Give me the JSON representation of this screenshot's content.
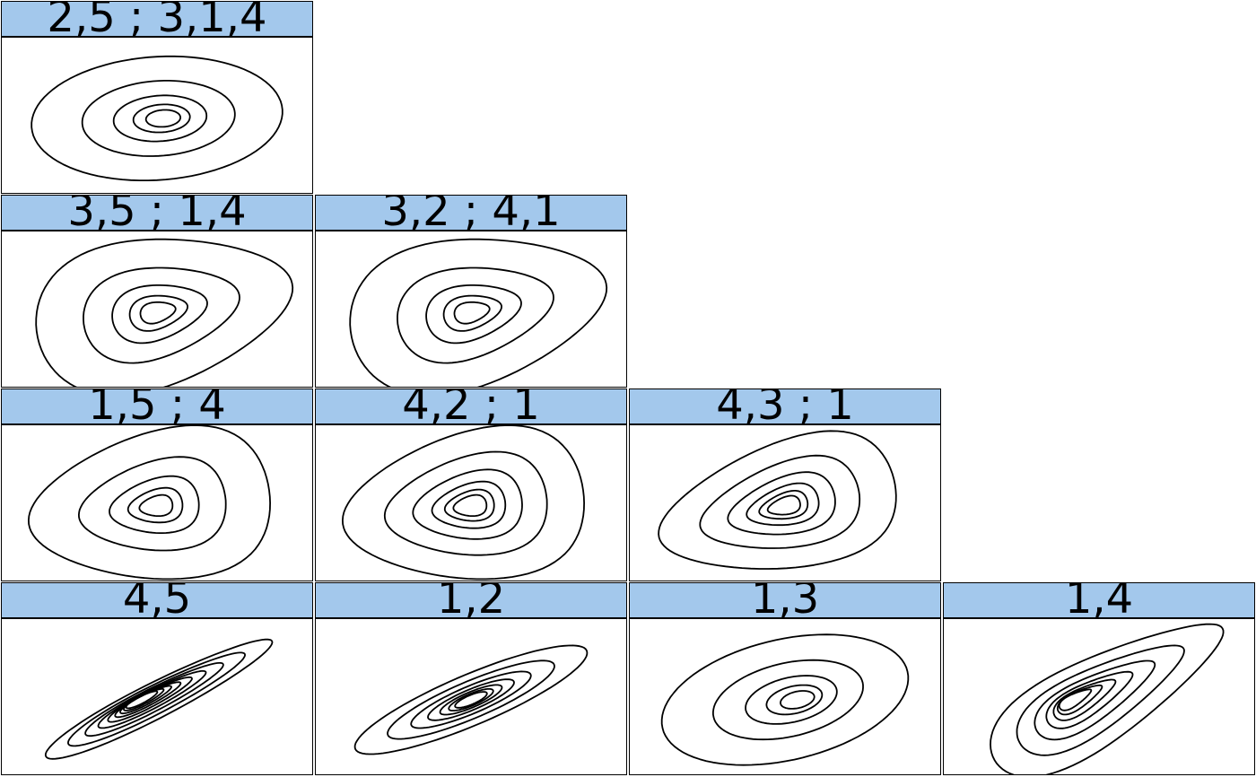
{
  "colors": {
    "strip_background": "#a3c8ec",
    "contour_line": "#000000",
    "border": "#000000"
  },
  "chart_data": {
    "type": "contour",
    "layout": "lower-triangular grid of 2D density contour panels (4 rows)",
    "panels": [
      {
        "label": "2,5 ; 3,1,4",
        "row": 1,
        "col": 1,
        "levels": 5,
        "shape": "ellipse",
        "slant": -4,
        "skew": 0,
        "aspect": 0.49,
        "peak_x": 0.52
      },
      {
        "label": "3,5 ; 1,4",
        "row": 2,
        "col": 1,
        "levels": 5,
        "shape": "skewed",
        "slant": -12,
        "skew": 0.55,
        "aspect": 0.47,
        "peak_x": 0.5
      },
      {
        "label": "3,2 ; 4,1",
        "row": 2,
        "col": 2,
        "levels": 5,
        "shape": "skewed",
        "slant": -12,
        "skew": 0.55,
        "aspect": 0.47,
        "peak_x": 0.5
      },
      {
        "label": "1,5 ; 4",
        "row": 3,
        "col": 1,
        "levels": 5,
        "shape": "skewed",
        "slant": -8,
        "skew": -0.55,
        "aspect": 0.47,
        "peak_x": 0.5
      },
      {
        "label": "4,2 ; 1",
        "row": 3,
        "col": 2,
        "levels": 6,
        "shape": "skewed",
        "slant": -8,
        "skew": -0.55,
        "aspect": 0.47,
        "peak_x": 0.5
      },
      {
        "label": "4,3 ; 1",
        "row": 3,
        "col": 3,
        "levels": 6,
        "shape": "skewed",
        "slant": -14,
        "skew": -0.6,
        "aspect": 0.4,
        "peak_x": 0.5
      },
      {
        "label": "4,5",
        "row": 4,
        "col": 1,
        "levels": 9,
        "shape": "ellipse",
        "slant": -27,
        "skew": 0.15,
        "aspect": 0.13,
        "peak_x": 0.45
      },
      {
        "label": "1,2",
        "row": 4,
        "col": 2,
        "levels": 7,
        "shape": "ellipse",
        "slant": -23,
        "skew": 0,
        "aspect": 0.19,
        "peak_x": 0.5
      },
      {
        "label": "1,3",
        "row": 4,
        "col": 3,
        "levels": 5,
        "shape": "ellipse",
        "slant": -13,
        "skew": 0,
        "aspect": 0.48,
        "peak_x": 0.54
      },
      {
        "label": "1,4",
        "row": 4,
        "col": 4,
        "levels": 7,
        "shape": "skewed",
        "slant": -30,
        "skew": 0.75,
        "aspect": 0.27,
        "peak_x": 0.42
      }
    ]
  }
}
